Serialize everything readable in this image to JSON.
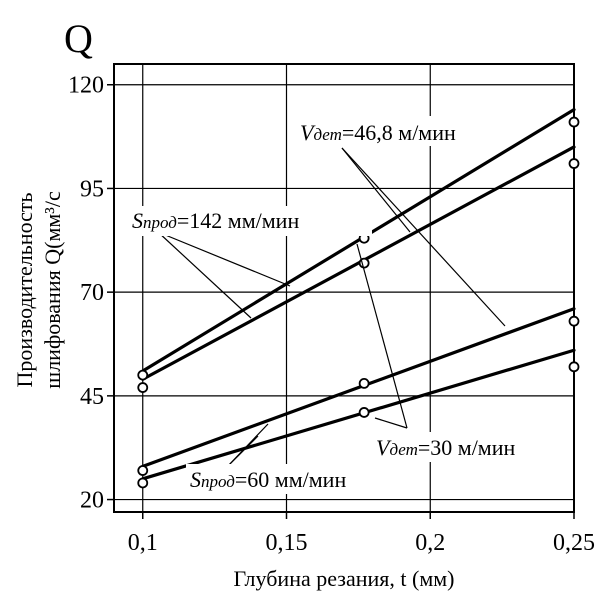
{
  "chart_data": {
    "type": "scatter",
    "title": "Q",
    "xlabel": "Глубина резания, t (мм)",
    "ylabel_line1": "Производительность",
    "ylabel_line2": "шлифования Q(мм³/с",
    "xlim": [
      0.09,
      0.25
    ],
    "ylim": [
      17,
      125
    ],
    "x_ticks": [
      0.1,
      0.15,
      0.2,
      0.25
    ],
    "x_tick_labels": [
      "0,1",
      "0,15",
      "0,2",
      "0,25"
    ],
    "y_ticks": [
      20,
      45,
      70,
      95,
      120
    ],
    "y_tick_labels": [
      "20",
      "45",
      "70",
      "95",
      "120"
    ],
    "grid": true,
    "series": [
      {
        "line": [
          [
            0.1,
            51
          ],
          [
            0.25,
            114
          ]
        ],
        "points": [
          [
            0.1,
            50
          ],
          [
            0.177,
            83
          ],
          [
            0.25,
            111
          ]
        ]
      },
      {
        "line": [
          [
            0.1,
            49
          ],
          [
            0.25,
            105
          ]
        ],
        "points": [
          [
            0.1,
            47
          ],
          [
            0.177,
            77
          ],
          [
            0.25,
            101
          ]
        ]
      },
      {
        "line": [
          [
            0.1,
            28
          ],
          [
            0.25,
            66
          ]
        ],
        "points": [
          [
            0.1,
            27
          ],
          [
            0.177,
            48
          ],
          [
            0.25,
            63
          ]
        ]
      },
      {
        "line": [
          [
            0.1,
            25
          ],
          [
            0.25,
            56
          ]
        ],
        "points": [
          [
            0.1,
            24
          ],
          [
            0.177,
            41
          ],
          [
            0.25,
            52
          ]
        ]
      }
    ],
    "annotations": [
      {
        "id": "vdet-46",
        "prefix": "V",
        "subscript": "дет",
        "text": "=46,8 м/мин"
      },
      {
        "id": "sprod-142",
        "prefix": "S",
        "subscript": "прод",
        "text": "=142 мм/мин"
      },
      {
        "id": "vdet-30",
        "prefix": "V",
        "subscript": "дет",
        "text": "=30 м/мин"
      },
      {
        "id": "sprod-60",
        "prefix": "S",
        "subscript": "прод",
        "text": "=60 мм/мин"
      }
    ]
  }
}
